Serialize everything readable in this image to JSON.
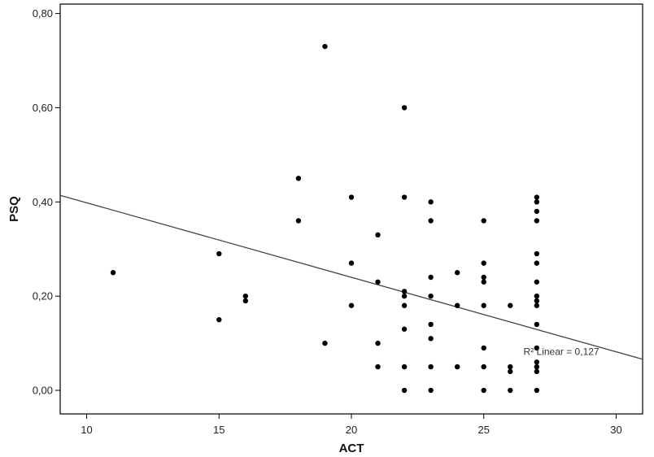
{
  "chart_data": {
    "type": "scatter",
    "xlabel": "ACT",
    "ylabel": "PSQ",
    "xlim": [
      9,
      31
    ],
    "ylim": [
      -0.05,
      0.82
    ],
    "x_ticks": [
      10,
      15,
      20,
      25,
      30
    ],
    "y_ticks": [
      0.0,
      0.2,
      0.4,
      0.6,
      0.8
    ],
    "x_tick_labels": [
      "10",
      "15",
      "20",
      "25",
      "30"
    ],
    "y_tick_labels": [
      "0,00",
      "0,20",
      "0,40",
      "0,60",
      "0,80"
    ],
    "grid": false,
    "legend": "none",
    "point_color": "#000000",
    "line_color": "#444444",
    "points": [
      [
        11,
        0.25
      ],
      [
        15,
        0.29
      ],
      [
        15,
        0.15
      ],
      [
        16,
        0.2
      ],
      [
        16,
        0.19
      ],
      [
        18,
        0.45
      ],
      [
        18,
        0.36
      ],
      [
        19,
        0.73
      ],
      [
        19,
        0.1
      ],
      [
        20,
        0.41
      ],
      [
        20,
        0.27
      ],
      [
        20,
        0.18
      ],
      [
        21,
        0.33
      ],
      [
        21,
        0.23
      ],
      [
        21,
        0.1
      ],
      [
        21,
        0.05
      ],
      [
        22,
        0.6
      ],
      [
        22,
        0.41
      ],
      [
        22,
        0.21
      ],
      [
        22,
        0.2
      ],
      [
        22,
        0.18
      ],
      [
        22,
        0.13
      ],
      [
        22,
        0.05
      ],
      [
        22,
        0.0
      ],
      [
        23,
        0.4
      ],
      [
        23,
        0.36
      ],
      [
        23,
        0.24
      ],
      [
        23,
        0.2
      ],
      [
        23,
        0.14
      ],
      [
        23,
        0.11
      ],
      [
        23,
        0.05
      ],
      [
        23,
        0.0
      ],
      [
        24,
        0.25
      ],
      [
        24,
        0.18
      ],
      [
        24,
        0.05
      ],
      [
        25,
        0.36
      ],
      [
        25,
        0.27
      ],
      [
        25,
        0.24
      ],
      [
        25,
        0.23
      ],
      [
        25,
        0.18
      ],
      [
        25,
        0.09
      ],
      [
        25,
        0.05
      ],
      [
        25,
        0.0
      ],
      [
        26,
        0.18
      ],
      [
        26,
        0.05
      ],
      [
        26,
        0.04
      ],
      [
        26,
        0.0
      ],
      [
        27,
        0.41
      ],
      [
        27,
        0.4
      ],
      [
        27,
        0.38
      ],
      [
        27,
        0.36
      ],
      [
        27,
        0.29
      ],
      [
        27,
        0.27
      ],
      [
        27,
        0.23
      ],
      [
        27,
        0.2
      ],
      [
        27,
        0.19
      ],
      [
        27,
        0.18
      ],
      [
        27,
        0.14
      ],
      [
        27,
        0.09
      ],
      [
        27,
        0.06
      ],
      [
        27,
        0.05
      ],
      [
        27,
        0.04
      ],
      [
        27,
        0.0
      ]
    ],
    "fit_line": {
      "x": [
        9,
        31
      ],
      "y": [
        0.414,
        0.066
      ]
    },
    "fit_label": "R² Linear = 0,127",
    "fit_label_at": [
      26.5,
      0.075
    ]
  }
}
